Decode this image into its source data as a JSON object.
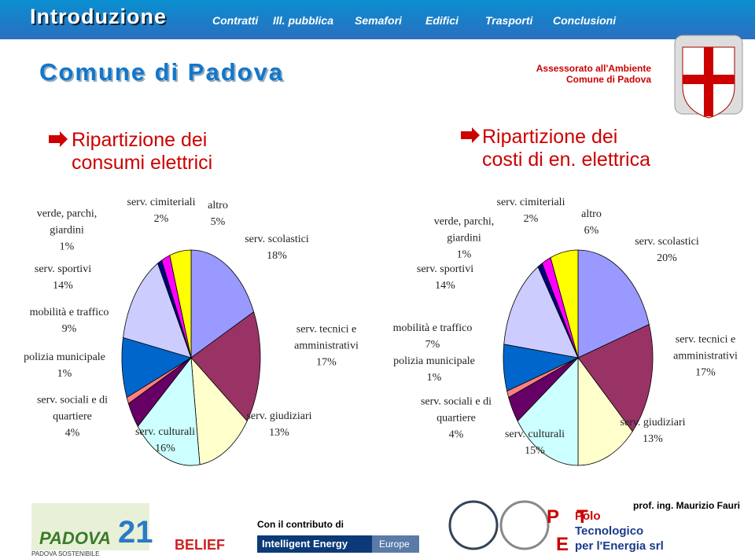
{
  "header": {
    "title": "Introduzione",
    "nav": [
      "Contratti",
      "Ill. pubblica",
      "Semafori",
      "Edifici",
      "Trasporti",
      "Conclusioni"
    ],
    "subtitle": "Comune di Padova",
    "department": "Assessorato all'Ambiente",
    "department_sub": "Comune di Padova"
  },
  "chart_data": [
    {
      "type": "pie",
      "title": "Ripartizione dei consumi elettrici",
      "categories": [
        "serv. scolastici",
        "serv. tecnici e amministrativi",
        "serv. giudiziari",
        "serv. culturali",
        "serv. sociali e di quartiere",
        "polizia municipale",
        "mobilità e traffico",
        "serv. sportivi",
        "verde, parchi, giardini",
        "serv. cimiteriali",
        "altro"
      ],
      "values": [
        18,
        17,
        13,
        16,
        4,
        1,
        9,
        14,
        1,
        2,
        5
      ],
      "value_labels": [
        "18%",
        "17%",
        "13%",
        "16%",
        "4%",
        "1%",
        "9%",
        "14%",
        "1%",
        "2%",
        "5%"
      ],
      "colors": [
        "#9999ff",
        "#993366",
        "#ffffcc",
        "#ccffff",
        "#660066",
        "#ff8080",
        "#0066cc",
        "#ccccff",
        "#000080",
        "#ff00ff",
        "#ffff00"
      ]
    },
    {
      "type": "pie",
      "title": "Ripartizione dei costi di en. elettrica",
      "categories": [
        "serv. scolastici",
        "serv. tecnici e amministrativi",
        "serv. giudiziari",
        "serv. culturali",
        "serv. sociali e di quartiere",
        "polizia municipale",
        "mobilità e traffico",
        "serv. sportivi",
        "verde, parchi, giardini",
        "serv. cimiteriali",
        "altro"
      ],
      "values": [
        20,
        17,
        13,
        15,
        4,
        1,
        7,
        14,
        1,
        2,
        6
      ],
      "value_labels": [
        "20%",
        "17%",
        "13%",
        "15%",
        "4%",
        "1%",
        "7%",
        "14%",
        "1%",
        "2%",
        "6%"
      ],
      "colors": [
        "#9999ff",
        "#993366",
        "#ffffcc",
        "#ccffff",
        "#660066",
        "#ff8080",
        "#0066cc",
        "#ccccff",
        "#000080",
        "#ff00ff",
        "#ffff00"
      ]
    }
  ],
  "footer": {
    "contribution": "Con il contributo di",
    "program": "Intelligent Energy",
    "program_region": "Europe",
    "padova": "PADOVA",
    "padova_num": "21",
    "padova_sub": "PADOVA SOSTENIBILE",
    "belief": "BELIEF",
    "company": [
      "Polo",
      "Tecnologico",
      "per l'Energia srl"
    ],
    "author": "prof. ing. Maurizio Fauri"
  }
}
